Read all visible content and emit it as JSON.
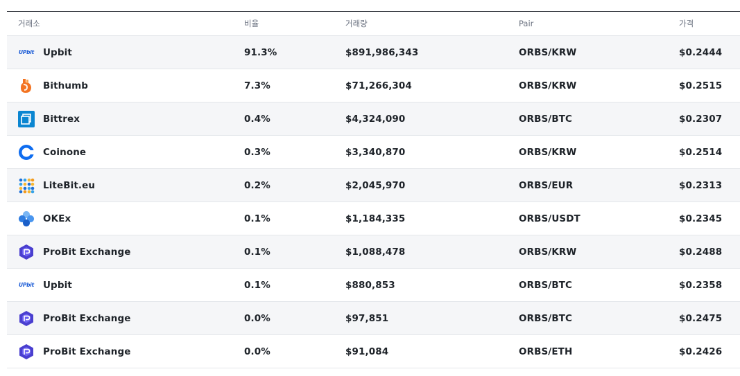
{
  "columns": {
    "exchange": "거래소",
    "share": "비율",
    "volume": "거래량",
    "pair": "Pair",
    "price": "가격"
  },
  "rows": [
    {
      "exchange": "Upbit",
      "logo": "upbit-logo-icon",
      "share": "91.3%",
      "volume": "$891,986,343",
      "pair": "ORBS/KRW",
      "price": "$0.2444"
    },
    {
      "exchange": "Bithumb",
      "logo": "bithumb-logo-icon",
      "share": "7.3%",
      "volume": "$71,266,304",
      "pair": "ORBS/KRW",
      "price": "$0.2515"
    },
    {
      "exchange": "Bittrex",
      "logo": "bittrex-logo-icon",
      "share": "0.4%",
      "volume": "$4,324,090",
      "pair": "ORBS/BTC",
      "price": "$0.2307"
    },
    {
      "exchange": "Coinone",
      "logo": "coinone-logo-icon",
      "share": "0.3%",
      "volume": "$3,340,870",
      "pair": "ORBS/KRW",
      "price": "$0.2514"
    },
    {
      "exchange": "LiteBit.eu",
      "logo": "litebit-logo-icon",
      "share": "0.2%",
      "volume": "$2,045,970",
      "pair": "ORBS/EUR",
      "price": "$0.2313"
    },
    {
      "exchange": "OKEx",
      "logo": "okex-logo-icon",
      "share": "0.1%",
      "volume": "$1,184,335",
      "pair": "ORBS/USDT",
      "price": "$0.2345"
    },
    {
      "exchange": "ProBit Exchange",
      "logo": "probit-logo-icon",
      "share": "0.1%",
      "volume": "$1,088,478",
      "pair": "ORBS/KRW",
      "price": "$0.2488"
    },
    {
      "exchange": "Upbit",
      "logo": "upbit-logo-icon",
      "share": "0.1%",
      "volume": "$880,853",
      "pair": "ORBS/BTC",
      "price": "$0.2358"
    },
    {
      "exchange": "ProBit Exchange",
      "logo": "probit-logo-icon",
      "share": "0.0%",
      "volume": "$97,851",
      "pair": "ORBS/BTC",
      "price": "$0.2475"
    },
    {
      "exchange": "ProBit Exchange",
      "logo": "probit-logo-icon",
      "share": "0.0%",
      "volume": "$91,084",
      "pair": "ORBS/ETH",
      "price": "$0.2426"
    }
  ],
  "logo_text": {
    "upbit": "UPbit"
  },
  "colors": {
    "row_shade": "#f5f6f8",
    "divider": "#e3e6ea",
    "text": "#1e2329",
    "header_text": "#6b7280"
  }
}
